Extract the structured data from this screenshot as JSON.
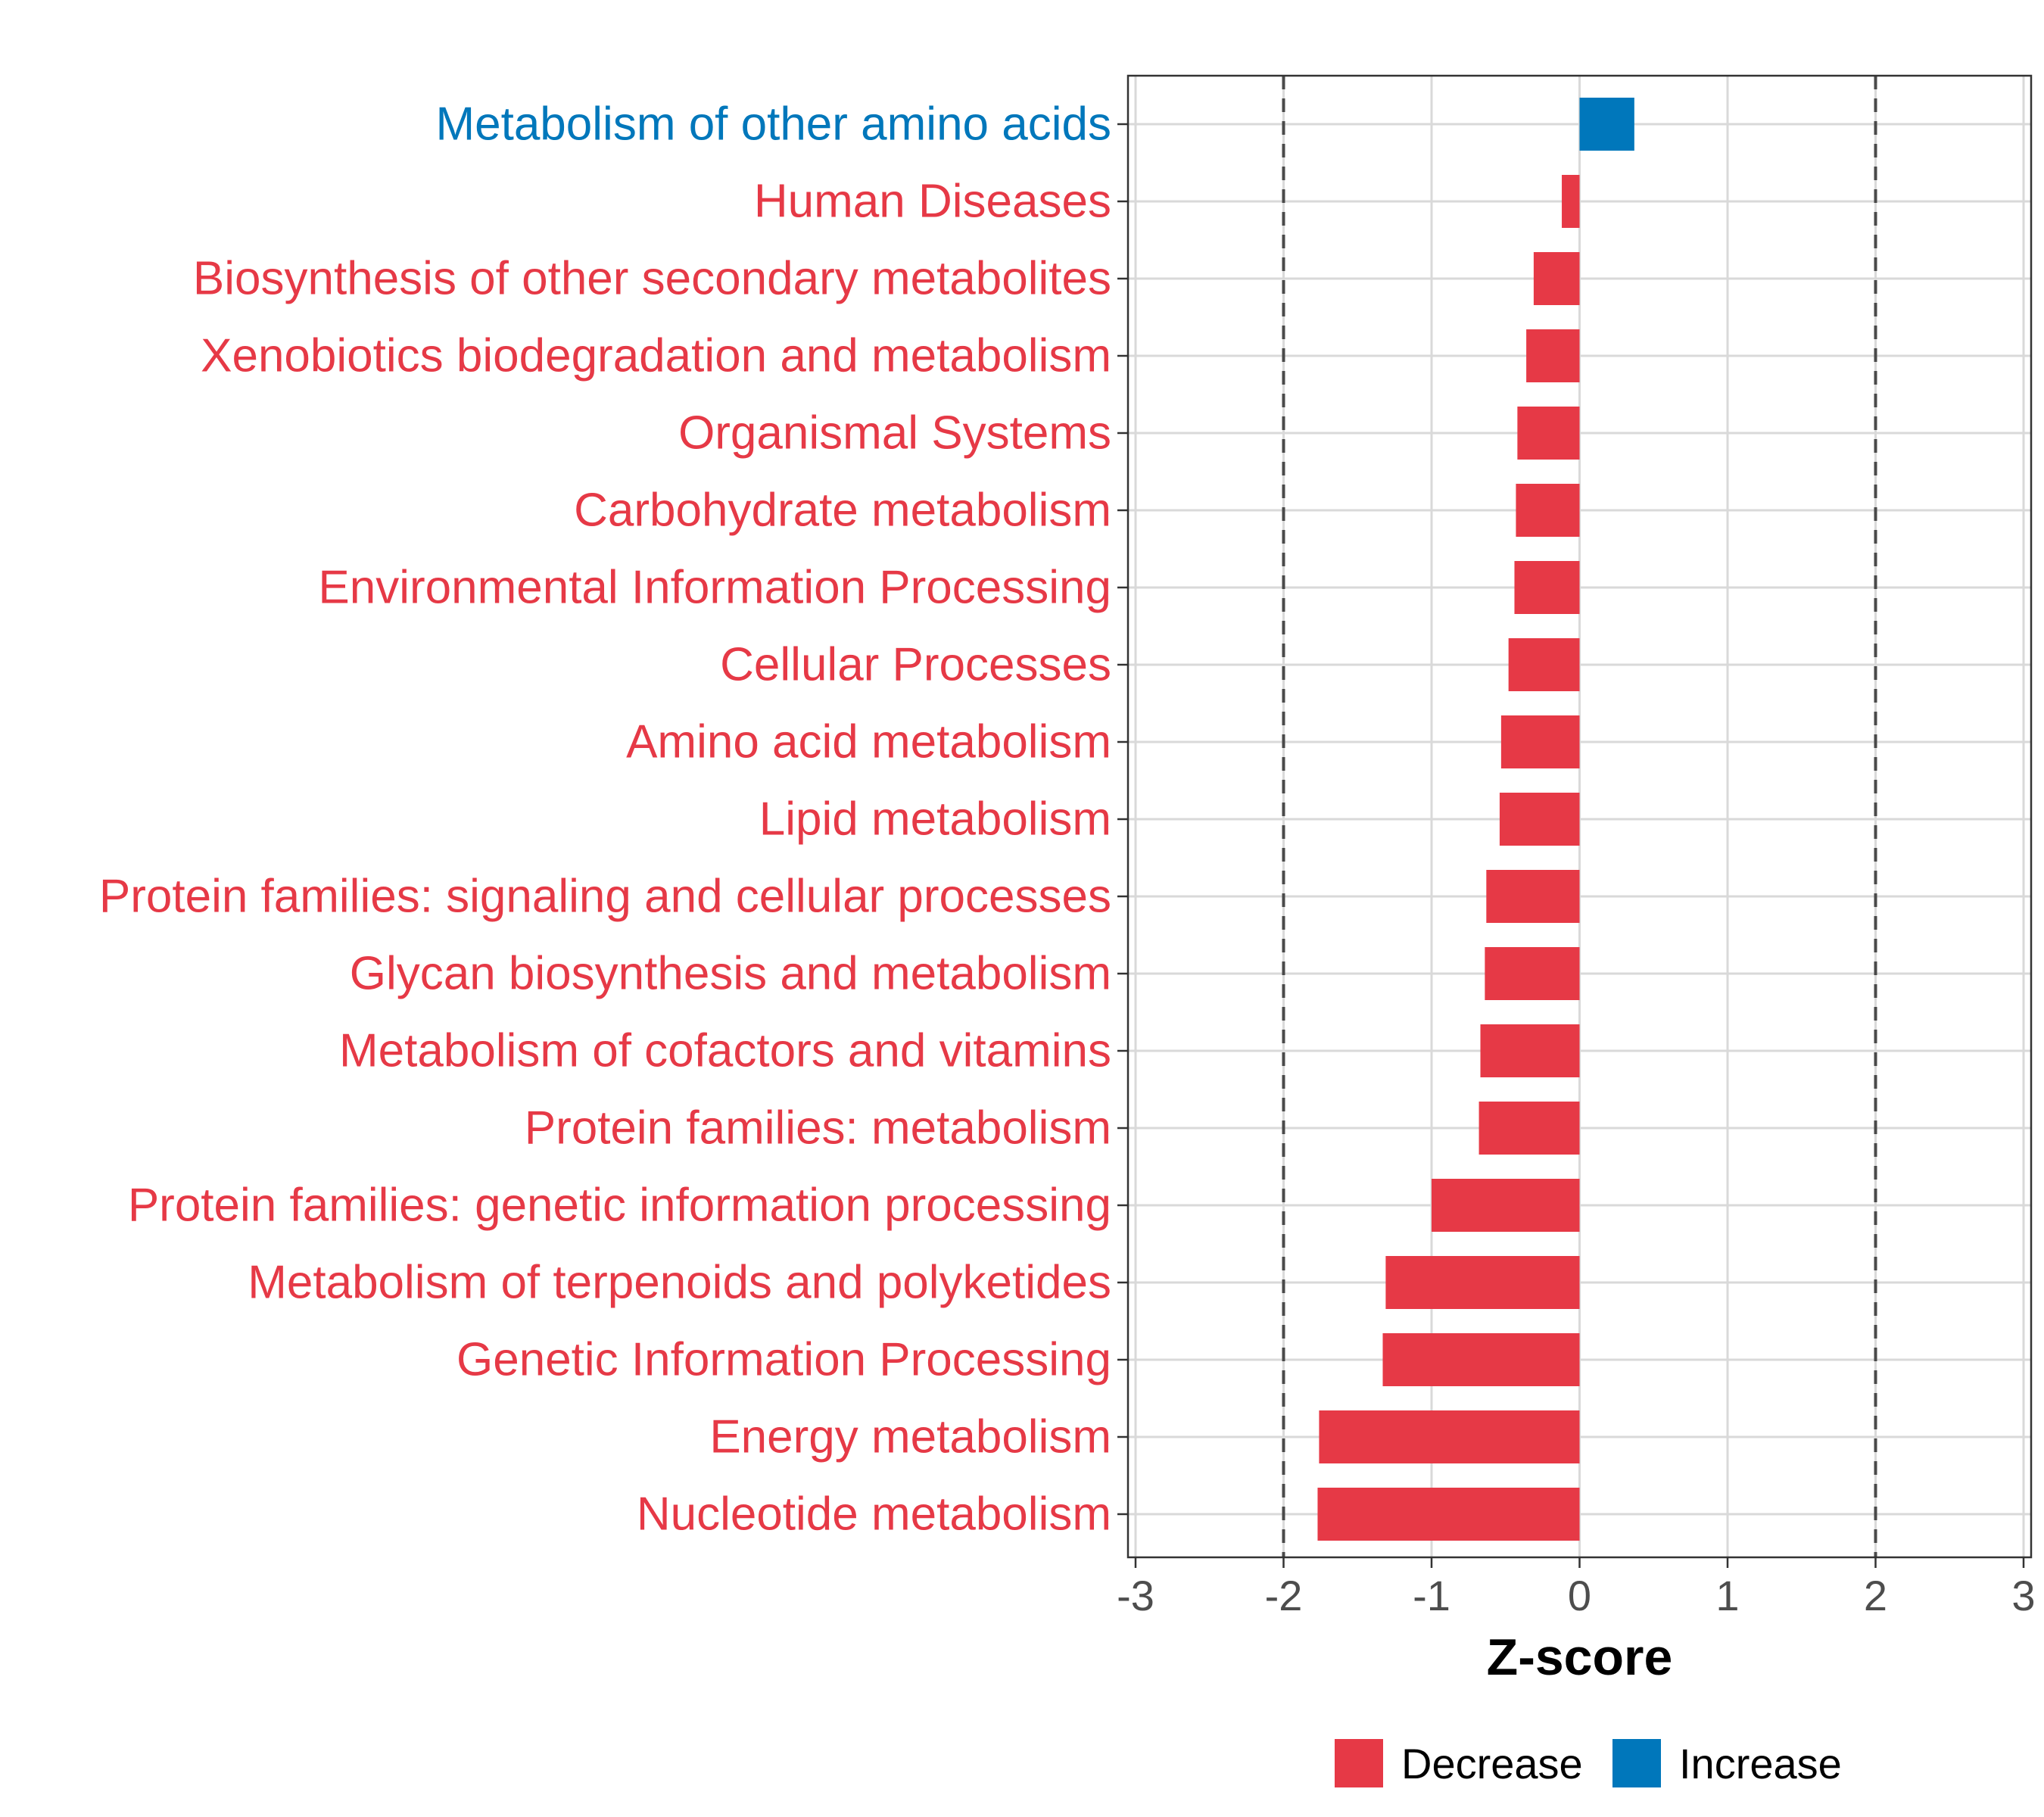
{
  "chart_data": {
    "type": "bar",
    "orientation": "horizontal",
    "title": "",
    "xlabel": "Z-score",
    "ylabel": "",
    "xlim": [
      -3,
      3
    ],
    "xticks": [
      -3,
      -2,
      -1,
      0,
      1,
      2,
      3
    ],
    "reference_lines": [
      -2,
      2
    ],
    "grid": true,
    "legend_position": "bottom",
    "colors": {
      "Decrease": "#E63946",
      "Increase": "#0077BB"
    },
    "legend": [
      "Decrease",
      "Increase"
    ],
    "categories": [
      "Metabolism of other amino acids",
      "Human Diseases",
      "Biosynthesis of other secondary metabolites",
      "Xenobiotics biodegradation and metabolism",
      "Organismal Systems",
      "Carbohydrate metabolism",
      "Environmental Information Processing",
      "Cellular Processes",
      "Amino acid metabolism",
      "Lipid metabolism",
      "Protein families: signaling and cellular processes",
      "Glycan biosynthesis and metabolism",
      "Metabolism of cofactors and vitamins",
      "Protein families: metabolism",
      "Protein families: genetic information processing",
      "Metabolism of terpenoids and polyketides",
      "Genetic Information Processing",
      "Energy metabolism",
      "Nucleotide metabolism"
    ],
    "values": [
      0.37,
      -0.12,
      -0.31,
      -0.36,
      -0.42,
      -0.43,
      -0.44,
      -0.48,
      -0.53,
      -0.54,
      -0.63,
      -0.64,
      -0.67,
      -0.68,
      -1.0,
      -1.31,
      -1.33,
      -1.76,
      -1.77
    ],
    "direction": [
      "Increase",
      "Decrease",
      "Decrease",
      "Decrease",
      "Decrease",
      "Decrease",
      "Decrease",
      "Decrease",
      "Decrease",
      "Decrease",
      "Decrease",
      "Decrease",
      "Decrease",
      "Decrease",
      "Decrease",
      "Decrease",
      "Decrease",
      "Decrease",
      "Decrease"
    ]
  }
}
